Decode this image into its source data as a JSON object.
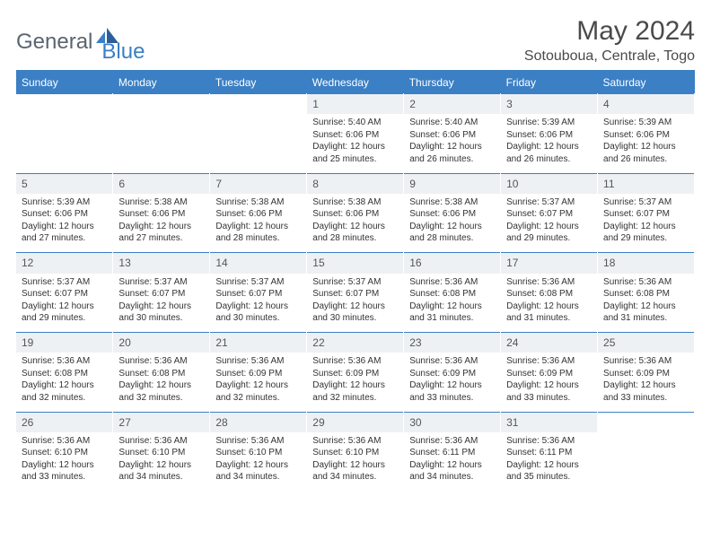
{
  "logo": {
    "part1": "General",
    "part2": "Blue"
  },
  "title": "May 2024",
  "location": "Sotouboua, Centrale, Togo",
  "colors": {
    "header_bg": "#3b7fc4",
    "header_text": "#ffffff",
    "daynum_bg": "#eef1f3",
    "border": "#3b7fc4",
    "text": "#333333"
  },
  "daysOfWeek": [
    "Sunday",
    "Monday",
    "Tuesday",
    "Wednesday",
    "Thursday",
    "Friday",
    "Saturday"
  ],
  "weeks": [
    [
      null,
      null,
      null,
      {
        "n": "1",
        "l1": "Sunrise: 5:40 AM",
        "l2": "Sunset: 6:06 PM",
        "l3": "Daylight: 12 hours",
        "l4": "and 25 minutes."
      },
      {
        "n": "2",
        "l1": "Sunrise: 5:40 AM",
        "l2": "Sunset: 6:06 PM",
        "l3": "Daylight: 12 hours",
        "l4": "and 26 minutes."
      },
      {
        "n": "3",
        "l1": "Sunrise: 5:39 AM",
        "l2": "Sunset: 6:06 PM",
        "l3": "Daylight: 12 hours",
        "l4": "and 26 minutes."
      },
      {
        "n": "4",
        "l1": "Sunrise: 5:39 AM",
        "l2": "Sunset: 6:06 PM",
        "l3": "Daylight: 12 hours",
        "l4": "and 26 minutes."
      }
    ],
    [
      {
        "n": "5",
        "l1": "Sunrise: 5:39 AM",
        "l2": "Sunset: 6:06 PM",
        "l3": "Daylight: 12 hours",
        "l4": "and 27 minutes."
      },
      {
        "n": "6",
        "l1": "Sunrise: 5:38 AM",
        "l2": "Sunset: 6:06 PM",
        "l3": "Daylight: 12 hours",
        "l4": "and 27 minutes."
      },
      {
        "n": "7",
        "l1": "Sunrise: 5:38 AM",
        "l2": "Sunset: 6:06 PM",
        "l3": "Daylight: 12 hours",
        "l4": "and 28 minutes."
      },
      {
        "n": "8",
        "l1": "Sunrise: 5:38 AM",
        "l2": "Sunset: 6:06 PM",
        "l3": "Daylight: 12 hours",
        "l4": "and 28 minutes."
      },
      {
        "n": "9",
        "l1": "Sunrise: 5:38 AM",
        "l2": "Sunset: 6:06 PM",
        "l3": "Daylight: 12 hours",
        "l4": "and 28 minutes."
      },
      {
        "n": "10",
        "l1": "Sunrise: 5:37 AM",
        "l2": "Sunset: 6:07 PM",
        "l3": "Daylight: 12 hours",
        "l4": "and 29 minutes."
      },
      {
        "n": "11",
        "l1": "Sunrise: 5:37 AM",
        "l2": "Sunset: 6:07 PM",
        "l3": "Daylight: 12 hours",
        "l4": "and 29 minutes."
      }
    ],
    [
      {
        "n": "12",
        "l1": "Sunrise: 5:37 AM",
        "l2": "Sunset: 6:07 PM",
        "l3": "Daylight: 12 hours",
        "l4": "and 29 minutes."
      },
      {
        "n": "13",
        "l1": "Sunrise: 5:37 AM",
        "l2": "Sunset: 6:07 PM",
        "l3": "Daylight: 12 hours",
        "l4": "and 30 minutes."
      },
      {
        "n": "14",
        "l1": "Sunrise: 5:37 AM",
        "l2": "Sunset: 6:07 PM",
        "l3": "Daylight: 12 hours",
        "l4": "and 30 minutes."
      },
      {
        "n": "15",
        "l1": "Sunrise: 5:37 AM",
        "l2": "Sunset: 6:07 PM",
        "l3": "Daylight: 12 hours",
        "l4": "and 30 minutes."
      },
      {
        "n": "16",
        "l1": "Sunrise: 5:36 AM",
        "l2": "Sunset: 6:08 PM",
        "l3": "Daylight: 12 hours",
        "l4": "and 31 minutes."
      },
      {
        "n": "17",
        "l1": "Sunrise: 5:36 AM",
        "l2": "Sunset: 6:08 PM",
        "l3": "Daylight: 12 hours",
        "l4": "and 31 minutes."
      },
      {
        "n": "18",
        "l1": "Sunrise: 5:36 AM",
        "l2": "Sunset: 6:08 PM",
        "l3": "Daylight: 12 hours",
        "l4": "and 31 minutes."
      }
    ],
    [
      {
        "n": "19",
        "l1": "Sunrise: 5:36 AM",
        "l2": "Sunset: 6:08 PM",
        "l3": "Daylight: 12 hours",
        "l4": "and 32 minutes."
      },
      {
        "n": "20",
        "l1": "Sunrise: 5:36 AM",
        "l2": "Sunset: 6:08 PM",
        "l3": "Daylight: 12 hours",
        "l4": "and 32 minutes."
      },
      {
        "n": "21",
        "l1": "Sunrise: 5:36 AM",
        "l2": "Sunset: 6:09 PM",
        "l3": "Daylight: 12 hours",
        "l4": "and 32 minutes."
      },
      {
        "n": "22",
        "l1": "Sunrise: 5:36 AM",
        "l2": "Sunset: 6:09 PM",
        "l3": "Daylight: 12 hours",
        "l4": "and 32 minutes."
      },
      {
        "n": "23",
        "l1": "Sunrise: 5:36 AM",
        "l2": "Sunset: 6:09 PM",
        "l3": "Daylight: 12 hours",
        "l4": "and 33 minutes."
      },
      {
        "n": "24",
        "l1": "Sunrise: 5:36 AM",
        "l2": "Sunset: 6:09 PM",
        "l3": "Daylight: 12 hours",
        "l4": "and 33 minutes."
      },
      {
        "n": "25",
        "l1": "Sunrise: 5:36 AM",
        "l2": "Sunset: 6:09 PM",
        "l3": "Daylight: 12 hours",
        "l4": "and 33 minutes."
      }
    ],
    [
      {
        "n": "26",
        "l1": "Sunrise: 5:36 AM",
        "l2": "Sunset: 6:10 PM",
        "l3": "Daylight: 12 hours",
        "l4": "and 33 minutes."
      },
      {
        "n": "27",
        "l1": "Sunrise: 5:36 AM",
        "l2": "Sunset: 6:10 PM",
        "l3": "Daylight: 12 hours",
        "l4": "and 34 minutes."
      },
      {
        "n": "28",
        "l1": "Sunrise: 5:36 AM",
        "l2": "Sunset: 6:10 PM",
        "l3": "Daylight: 12 hours",
        "l4": "and 34 minutes."
      },
      {
        "n": "29",
        "l1": "Sunrise: 5:36 AM",
        "l2": "Sunset: 6:10 PM",
        "l3": "Daylight: 12 hours",
        "l4": "and 34 minutes."
      },
      {
        "n": "30",
        "l1": "Sunrise: 5:36 AM",
        "l2": "Sunset: 6:11 PM",
        "l3": "Daylight: 12 hours",
        "l4": "and 34 minutes."
      },
      {
        "n": "31",
        "l1": "Sunrise: 5:36 AM",
        "l2": "Sunset: 6:11 PM",
        "l3": "Daylight: 12 hours",
        "l4": "and 35 minutes."
      },
      null
    ]
  ]
}
